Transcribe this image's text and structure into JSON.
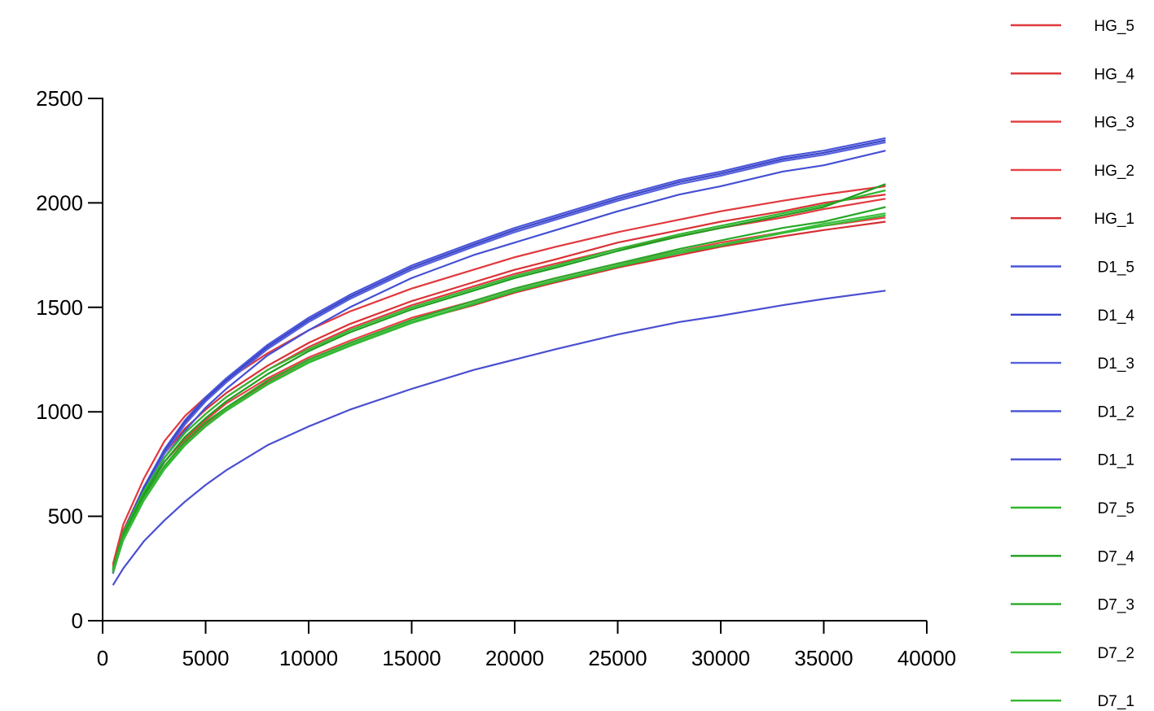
{
  "chart_data": {
    "type": "line",
    "title": "",
    "xlabel": "",
    "ylabel": "",
    "xlim": [
      0,
      40000
    ],
    "ylim": [
      0,
      2500
    ],
    "x_ticks": [
      "0",
      "5000",
      "10000",
      "15000",
      "20000",
      "25000",
      "30000",
      "35000",
      "40000"
    ],
    "y_ticks": [
      "0",
      "500",
      "1000",
      "1500",
      "2000",
      "2500"
    ],
    "grid": false,
    "legend_position": "right",
    "x": [
      500,
      1000,
      2000,
      3000,
      4000,
      5000,
      6000,
      8000,
      10000,
      12000,
      15000,
      18000,
      20000,
      22000,
      25000,
      28000,
      30000,
      33000,
      35000,
      38000
    ],
    "series": [
      {
        "name": "HG_5",
        "color": "#e0393e",
        "values": [
          270,
          460,
          680,
          860,
          980,
          1070,
          1150,
          1280,
          1390,
          1480,
          1590,
          1680,
          1740,
          1790,
          1860,
          1920,
          1960,
          2010,
          2040,
          2080
        ]
      },
      {
        "name": "HG_4",
        "color": "#d93236",
        "values": [
          260,
          430,
          640,
          800,
          920,
          1010,
          1090,
          1220,
          1330,
          1420,
          1530,
          1620,
          1680,
          1730,
          1810,
          1870,
          1910,
          1960,
          2000,
          2040
        ]
      },
      {
        "name": "HG_3",
        "color": "#e23a3f",
        "values": [
          250,
          420,
          620,
          780,
          900,
          990,
          1070,
          1200,
          1310,
          1400,
          1510,
          1600,
          1660,
          1710,
          1780,
          1840,
          1880,
          1930,
          1970,
          2020
        ]
      },
      {
        "name": "HG_2",
        "color": "#e84044",
        "values": [
          240,
          400,
          600,
          760,
          870,
          960,
          1040,
          1160,
          1260,
          1340,
          1450,
          1530,
          1590,
          1640,
          1710,
          1770,
          1810,
          1860,
          1890,
          1930
        ]
      },
      {
        "name": "HG_1",
        "color": "#d42f34",
        "values": [
          230,
          390,
          580,
          740,
          850,
          940,
          1020,
          1140,
          1240,
          1320,
          1430,
          1510,
          1570,
          1620,
          1690,
          1750,
          1790,
          1840,
          1870,
          1910
        ]
      },
      {
        "name": "D1_5",
        "color": "#4a56d8",
        "values": [
          240,
          420,
          640,
          820,
          960,
          1070,
          1160,
          1320,
          1450,
          1560,
          1700,
          1810,
          1880,
          1940,
          2030,
          2110,
          2150,
          2220,
          2250,
          2310
        ]
      },
      {
        "name": "D1_4",
        "color": "#3a44c8",
        "values": [
          235,
          410,
          630,
          810,
          950,
          1060,
          1150,
          1310,
          1440,
          1550,
          1690,
          1800,
          1870,
          1930,
          2020,
          2100,
          2140,
          2210,
          2240,
          2300
        ]
      },
      {
        "name": "D1_3",
        "color": "#5560dc",
        "values": [
          230,
          405,
          620,
          800,
          940,
          1050,
          1140,
          1300,
          1430,
          1540,
          1680,
          1790,
          1860,
          1920,
          2010,
          2090,
          2130,
          2200,
          2230,
          2290
        ]
      },
      {
        "name": "D1_2",
        "color": "#4450d4",
        "values": [
          225,
          395,
          600,
          780,
          910,
          1020,
          1110,
          1270,
          1390,
          1500,
          1640,
          1750,
          1810,
          1870,
          1960,
          2040,
          2080,
          2150,
          2180,
          2250
        ]
      },
      {
        "name": "D1_1",
        "color": "#4a4fd0",
        "values": [
          170,
          250,
          380,
          480,
          570,
          650,
          720,
          840,
          930,
          1010,
          1110,
          1200,
          1250,
          1300,
          1370,
          1430,
          1460,
          1510,
          1540,
          1580
        ]
      },
      {
        "name": "D7_5",
        "color": "#2fb82f",
        "values": [
          250,
          420,
          620,
          780,
          900,
          990,
          1070,
          1200,
          1300,
          1390,
          1500,
          1590,
          1650,
          1700,
          1780,
          1850,
          1890,
          1950,
          1990,
          2060
        ]
      },
      {
        "name": "D7_4",
        "color": "#1e9e1e",
        "values": [
          245,
          410,
          605,
          760,
          880,
          970,
          1050,
          1180,
          1290,
          1380,
          1490,
          1580,
          1640,
          1690,
          1770,
          1840,
          1880,
          1940,
          1980,
          2090
        ]
      },
      {
        "name": "D7_3",
        "color": "#28a828",
        "values": [
          240,
          400,
          590,
          740,
          860,
          950,
          1020,
          1150,
          1250,
          1330,
          1440,
          1530,
          1590,
          1640,
          1710,
          1780,
          1820,
          1880,
          1910,
          1980
        ]
      },
      {
        "name": "D7_2",
        "color": "#3cc03c",
        "values": [
          235,
          390,
          580,
          730,
          845,
          935,
          1010,
          1135,
          1240,
          1320,
          1430,
          1520,
          1580,
          1630,
          1700,
          1770,
          1800,
          1860,
          1900,
          1950
        ]
      },
      {
        "name": "D7_1",
        "color": "#34b834",
        "values": [
          230,
          385,
          575,
          725,
          840,
          930,
          1005,
          1130,
          1235,
          1315,
          1425,
          1515,
          1575,
          1625,
          1695,
          1760,
          1795,
          1855,
          1890,
          1940
        ]
      }
    ]
  }
}
